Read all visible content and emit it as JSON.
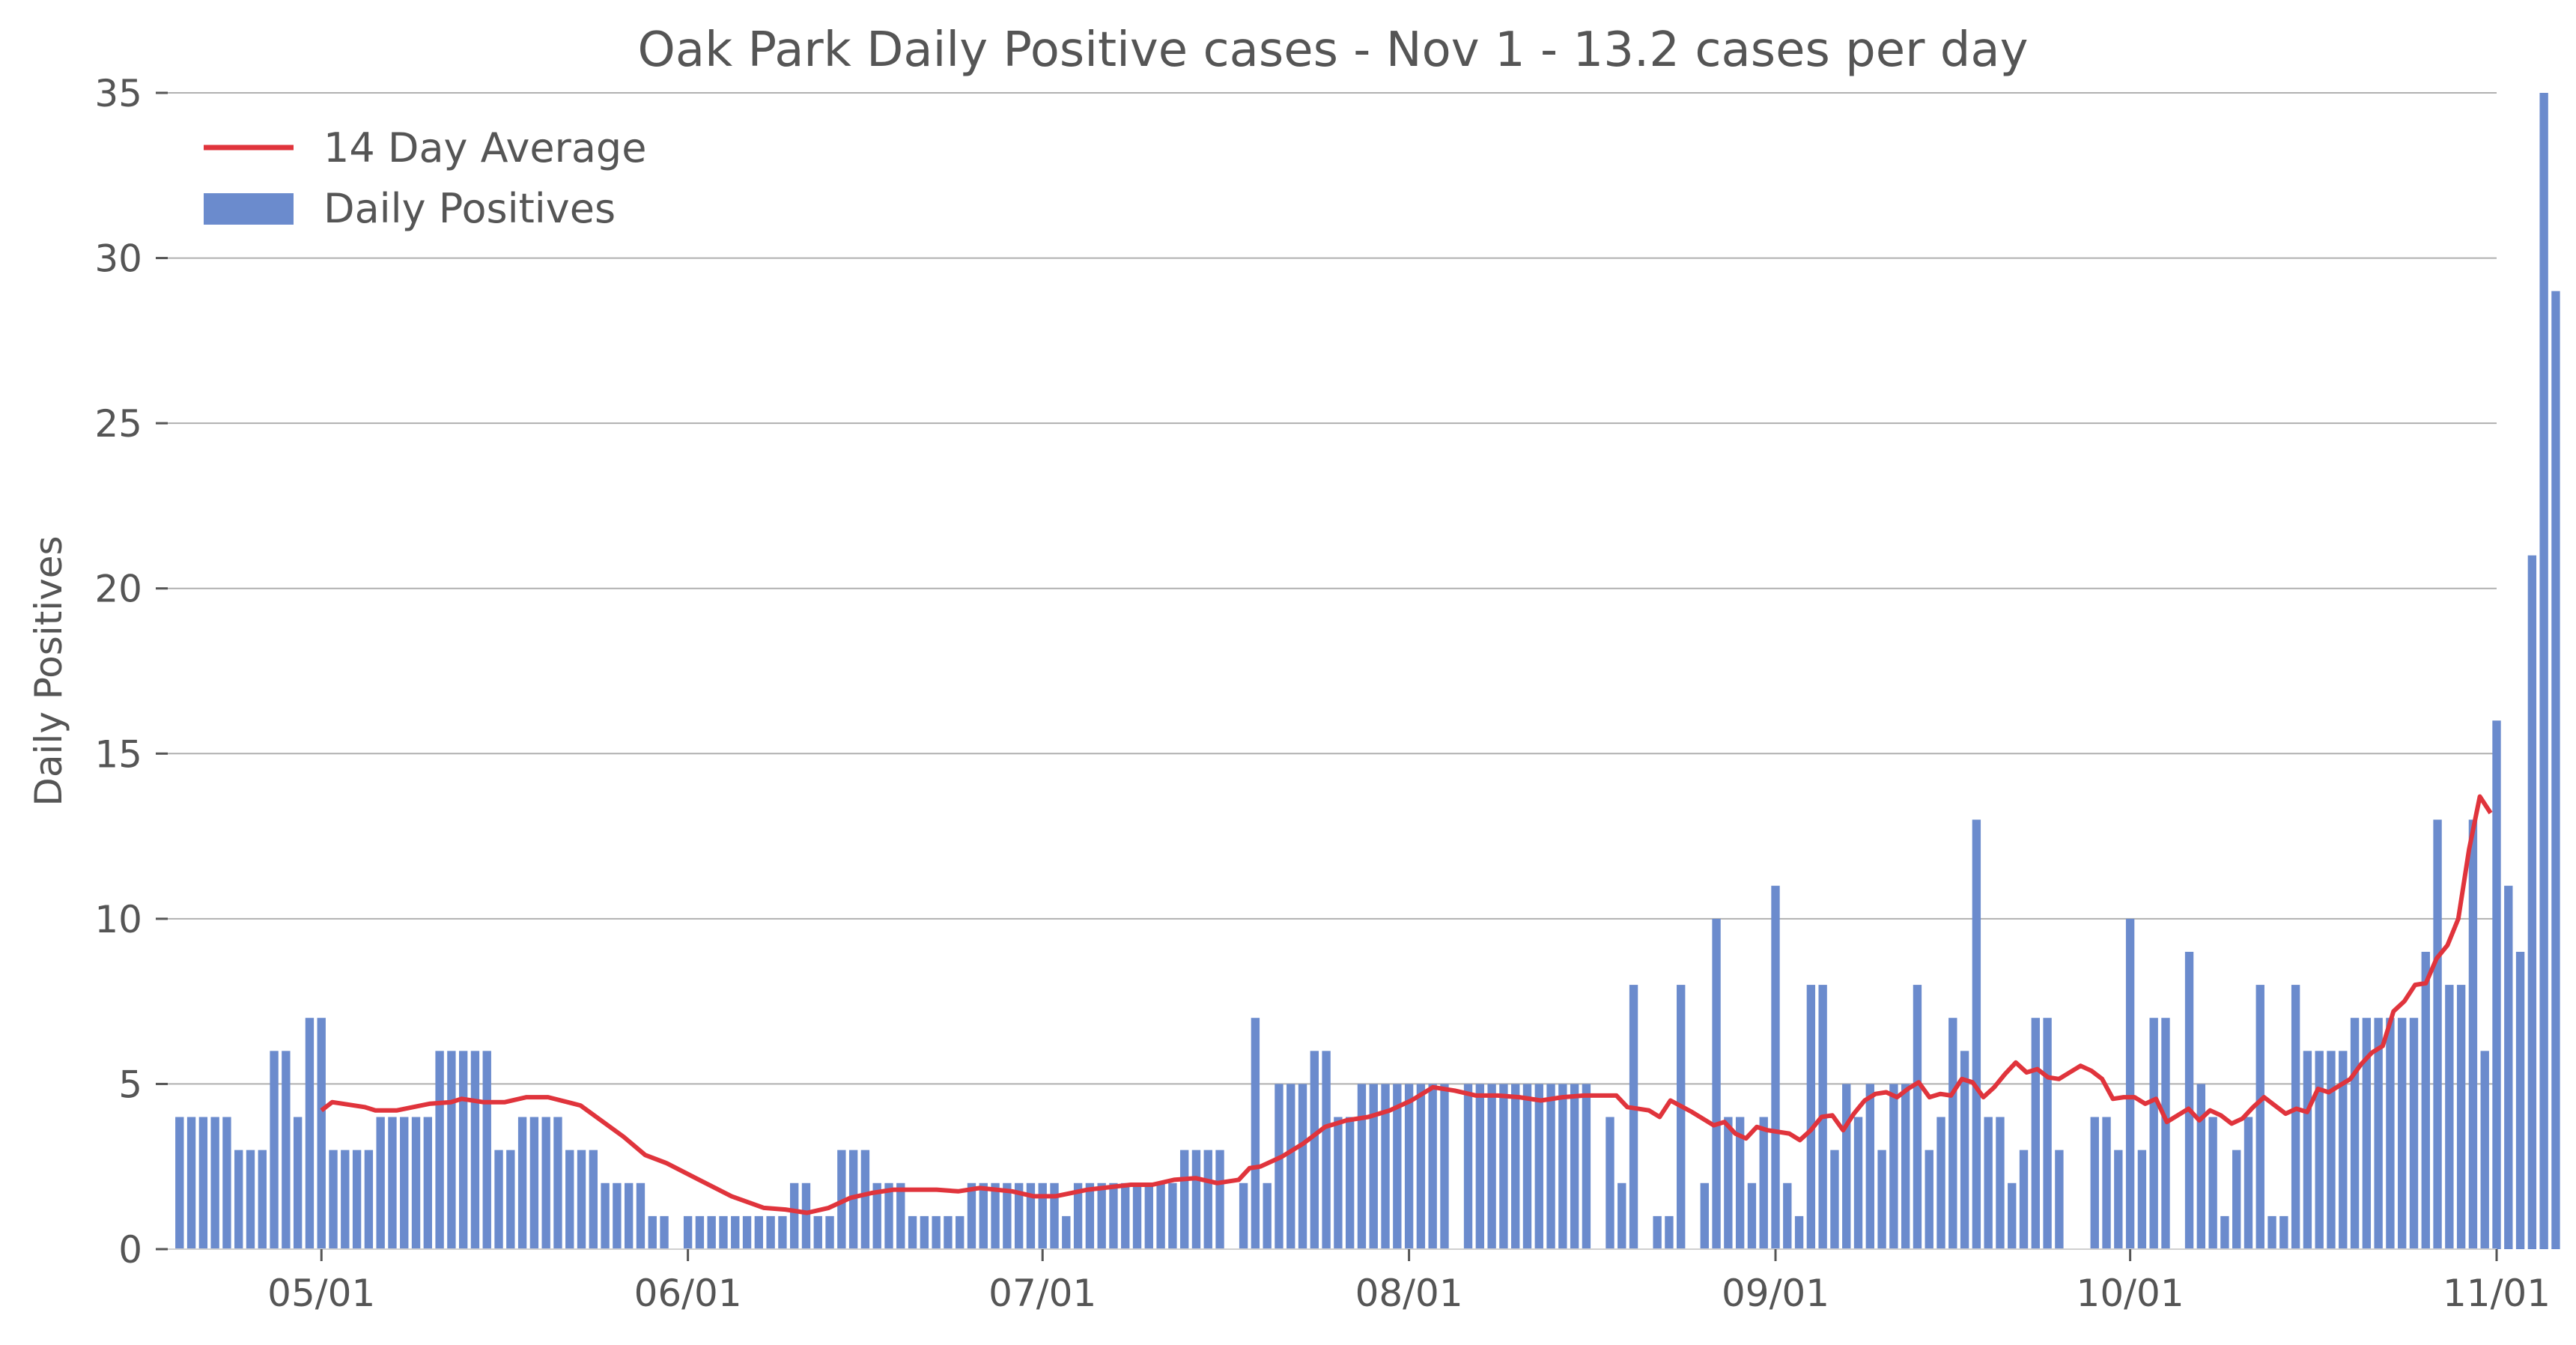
{
  "chart_data": {
    "type": "bar",
    "title": "Oak Park Daily Positive cases - Nov 1 - 13.2 cases per day",
    "xlabel": "",
    "ylabel": "Daily Positives",
    "ylim": [
      0,
      35
    ],
    "yticks": [
      "0",
      "5",
      "10",
      "15",
      "20",
      "25",
      "30",
      "35"
    ],
    "xticks": [
      {
        "date": "2020-05-01",
        "label": "05/01"
      },
      {
        "date": "2020-06-01",
        "label": "06/01"
      },
      {
        "date": "2020-07-01",
        "label": "07/01"
      },
      {
        "date": "2020-08-01",
        "label": "08/01"
      },
      {
        "date": "2020-09-01",
        "label": "09/01"
      },
      {
        "date": "2020-10-01",
        "label": "10/01"
      },
      {
        "date": "2020-11-01",
        "label": "11/01"
      }
    ],
    "xlim": [
      "2020-04-18",
      "2020-11-01"
    ],
    "grid": "horizontal",
    "legend": "top-left",
    "colors": {
      "bars": "#6b8bcd",
      "average": "#e0343c"
    },
    "legend_labels": {
      "line": "14 Day Average",
      "bar": "Daily Positives"
    },
    "bar_series": {
      "name": "Daily Positives",
      "start": "2020-04-19",
      "values": [
        4,
        4,
        4,
        4,
        4,
        3,
        3,
        3,
        6,
        6,
        4,
        7,
        7,
        3,
        3,
        3,
        3,
        4,
        4,
        4,
        4,
        4,
        6,
        6,
        6,
        6,
        6,
        3,
        3,
        4,
        4,
        4,
        4,
        3,
        3,
        3,
        2,
        2,
        2,
        2,
        1,
        1,
        0,
        1,
        1,
        1,
        1,
        1,
        1,
        1,
        1,
        1,
        2,
        2,
        1,
        1,
        3,
        3,
        3,
        2,
        2,
        2,
        1,
        1,
        1,
        1,
        1,
        2,
        2,
        2,
        2,
        2,
        2,
        2,
        2,
        1,
        2,
        2,
        2,
        2,
        2,
        2,
        2,
        2,
        2,
        3,
        3,
        3,
        3,
        0,
        2,
        7,
        2,
        5,
        5,
        5,
        6,
        6,
        4,
        4,
        5,
        5,
        5,
        5,
        5,
        5,
        5,
        5,
        0,
        5,
        5,
        5,
        5,
        5,
        5,
        5,
        5,
        5,
        5,
        5,
        0,
        4,
        2,
        8,
        0,
        1,
        1,
        8,
        0,
        2,
        10,
        4,
        4,
        2,
        4,
        11,
        2,
        1,
        8,
        8,
        3,
        5,
        4,
        5,
        3,
        5,
        5,
        8,
        3,
        4,
        7,
        6,
        13,
        4,
        4,
        2,
        3,
        7,
        7,
        3,
        0,
        0,
        4,
        4,
        3,
        10,
        3,
        7,
        7,
        0,
        9,
        5,
        4,
        1,
        3,
        4,
        8,
        1,
        1,
        8,
        6,
        6,
        6,
        6,
        7,
        7,
        7,
        7,
        7,
        7,
        9,
        13,
        8,
        8,
        13,
        6,
        16,
        11,
        9,
        21,
        35,
        29
      ]
    },
    "line_series": {
      "name": "14 Day Average",
      "points": [
        [
          "2020-05-01",
          4.2
        ],
        [
          "2020-05-02",
          4.45
        ],
        [
          "2020-05-05",
          4.3
        ],
        [
          "2020-05-06",
          4.2
        ],
        [
          "2020-05-08",
          4.2
        ],
        [
          "2020-05-11",
          4.4
        ],
        [
          "2020-05-13",
          4.45
        ],
        [
          "2020-05-14",
          4.55
        ],
        [
          "2020-05-16",
          4.45
        ],
        [
          "2020-05-18",
          4.45
        ],
        [
          "2020-05-20",
          4.6
        ],
        [
          "2020-05-22",
          4.6
        ],
        [
          "2020-05-25",
          4.35
        ],
        [
          "2020-05-29",
          3.4
        ],
        [
          "2020-05-31",
          2.85
        ],
        [
          "2020-06-02",
          2.6
        ],
        [
          "2020-06-05",
          2.1
        ],
        [
          "2020-06-08",
          1.6
        ],
        [
          "2020-06-11",
          1.25
        ],
        [
          "2020-06-13",
          1.2
        ],
        [
          "2020-06-15",
          1.1
        ],
        [
          "2020-06-17",
          1.25
        ],
        [
          "2020-06-19",
          1.55
        ],
        [
          "2020-06-21",
          1.7
        ],
        [
          "2020-06-23",
          1.8
        ],
        [
          "2020-06-27",
          1.8
        ],
        [
          "2020-06-29",
          1.75
        ],
        [
          "2020-07-01",
          1.85
        ],
        [
          "2020-07-04",
          1.75
        ],
        [
          "2020-07-06",
          1.6
        ],
        [
          "2020-07-08",
          1.6
        ],
        [
          "2020-07-11",
          1.8
        ],
        [
          "2020-07-15",
          1.95
        ],
        [
          "2020-07-17",
          1.95
        ],
        [
          "2020-07-19",
          2.1
        ],
        [
          "2020-07-21",
          2.15
        ],
        [
          "2020-07-23",
          2.0
        ],
        [
          "2020-07-25",
          2.1
        ],
        [
          "2020-07-26",
          2.45
        ],
        [
          "2020-07-27",
          2.5
        ],
        [
          "2020-07-29",
          2.8
        ],
        [
          "2020-07-31",
          3.2
        ],
        [
          "2020-08-02",
          3.7
        ],
        [
          "2020-08-04",
          3.9
        ],
        [
          "2020-08-06",
          4.0
        ],
        [
          "2020-08-08",
          4.2
        ],
        [
          "2020-08-10",
          4.5
        ],
        [
          "2020-08-12",
          4.9
        ],
        [
          "2020-08-14",
          4.8
        ],
        [
          "2020-08-16",
          4.65
        ],
        [
          "2020-08-18",
          4.65
        ],
        [
          "2020-08-20",
          4.6
        ],
        [
          "2020-08-22",
          4.5
        ],
        [
          "2020-08-24",
          4.6
        ],
        [
          "2020-08-26",
          4.65
        ],
        [
          "2020-08-29",
          4.65
        ],
        [
          "2020-08-30",
          4.3
        ],
        [
          "2020-09-01",
          4.2
        ],
        [
          "2020-09-02",
          4.0
        ],
        [
          "2020-09-03",
          4.5
        ],
        [
          "2020-09-05",
          4.15
        ],
        [
          "2020-09-07",
          3.75
        ],
        [
          "2020-09-08",
          3.85
        ],
        [
          "2020-09-09",
          3.5
        ],
        [
          "2020-09-10",
          3.35
        ],
        [
          "2020-09-11",
          3.7
        ],
        [
          "2020-09-12",
          3.6
        ],
        [
          "2020-09-14",
          3.5
        ],
        [
          "2020-09-15",
          3.3
        ],
        [
          "2020-09-16",
          3.6
        ],
        [
          "2020-09-17",
          4.0
        ],
        [
          "2020-09-18",
          4.05
        ],
        [
          "2020-09-19",
          3.6
        ],
        [
          "2020-09-20",
          4.1
        ],
        [
          "2020-09-21",
          4.5
        ],
        [
          "2020-09-22",
          4.7
        ],
        [
          "2020-09-23",
          4.75
        ],
        [
          "2020-09-24",
          4.6
        ],
        [
          "2020-09-25",
          4.85
        ],
        [
          "2020-09-26",
          5.05
        ],
        [
          "2020-09-27",
          4.6
        ],
        [
          "2020-09-28",
          4.7
        ],
        [
          "2020-09-29",
          4.65
        ],
        [
          "2020-09-30",
          5.15
        ],
        [
          "2020-10-01",
          5.05
        ],
        [
          "2020-10-02",
          4.6
        ],
        [
          "2020-10-03",
          4.9
        ],
        [
          "2020-10-04",
          5.3
        ],
        [
          "2020-10-05",
          5.65
        ],
        [
          "2020-10-06",
          5.35
        ],
        [
          "2020-10-07",
          5.45
        ],
        [
          "2020-10-08",
          5.2
        ],
        [
          "2020-10-09",
          5.15
        ],
        [
          "2020-10-10",
          5.35
        ],
        [
          "2020-10-11",
          5.55
        ],
        [
          "2020-10-12",
          5.4
        ],
        [
          "2020-10-13",
          5.15
        ],
        [
          "2020-10-14",
          4.55
        ],
        [
          "2020-10-15",
          4.6
        ],
        [
          "2020-10-16",
          4.6
        ],
        [
          "2020-10-17",
          4.4
        ],
        [
          "2020-10-18",
          4.55
        ],
        [
          "2020-10-19",
          3.85
        ],
        [
          "2020-10-20",
          4.05
        ],
        [
          "2020-10-21",
          4.25
        ],
        [
          "2020-10-22",
          3.9
        ],
        [
          "2020-10-23",
          4.2
        ],
        [
          "2020-10-24",
          4.05
        ],
        [
          "2020-10-25",
          3.8
        ],
        [
          "2020-10-26",
          3.95
        ],
        [
          "2020-10-27",
          4.3
        ],
        [
          "2020-10-28",
          4.6
        ],
        [
          "2020-10-29",
          4.35
        ],
        [
          "2020-10-30",
          4.1
        ],
        [
          "2020-10-31",
          4.25
        ],
        [
          "2020-11-01",
          4.15
        ],
        [
          "2020-11-02",
          4.85
        ],
        [
          "2020-11-03",
          4.75
        ],
        [
          "2020-11-04",
          4.95
        ],
        [
          "2020-11-05",
          5.15
        ],
        [
          "2020-11-06",
          5.6
        ],
        [
          "2020-11-07",
          5.95
        ],
        [
          "2020-11-08",
          6.15
        ],
        [
          "2020-11-09",
          7.2
        ],
        [
          "2020-11-10",
          7.5
        ],
        [
          "2020-11-11",
          8.0
        ],
        [
          "2020-11-12",
          8.05
        ],
        [
          "2020-11-13",
          8.8
        ],
        [
          "2020-11-14",
          9.2
        ],
        [
          "2020-11-15",
          10.0
        ],
        [
          "2020-11-16",
          12.1
        ],
        [
          "2020-11-17",
          13.7
        ],
        [
          "2020-11-18",
          13.2
        ]
      ]
    }
  }
}
